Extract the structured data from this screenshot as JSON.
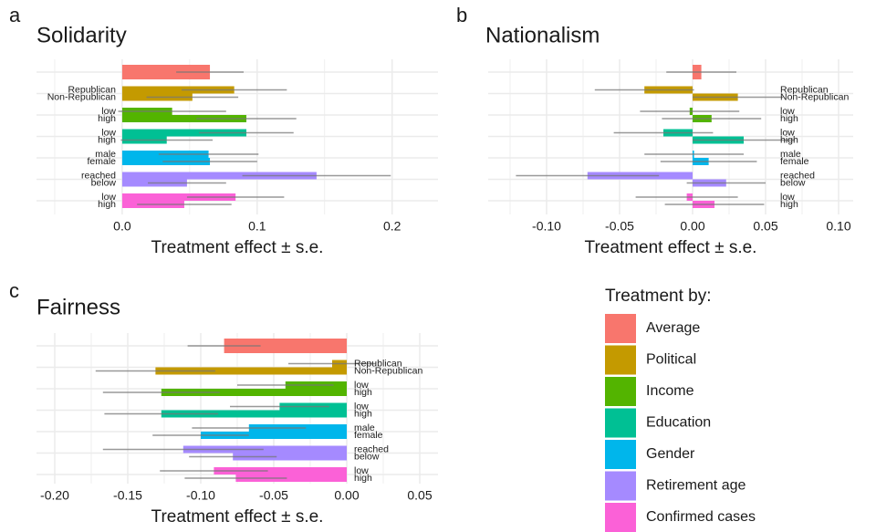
{
  "chart_data": [
    {
      "type": "bar",
      "letter": "a",
      "title": "Solidarity",
      "xlabel": "Treatment effect ± s.e.",
      "grid": true,
      "xlim": [
        -0.0635,
        0.234
      ],
      "xticks": [
        {
          "value": 0,
          "label": "0.0"
        },
        0.1,
        0.2
      ],
      "minor_xticks": [
        -0.05,
        0.05,
        0.15
      ],
      "groups": [
        {
          "labels": [
            null
          ],
          "values": [
            0.065
          ],
          "errors": [
            0.025
          ]
        },
        {
          "labels": [
            "Republican",
            "Non-Republican"
          ],
          "values": [
            0.083,
            0.052
          ],
          "errors": [
            0.039,
            0.034
          ]
        },
        {
          "labels": [
            "low",
            "high"
          ],
          "values": [
            0.037,
            0.092
          ],
          "errors": [
            0.04,
            0.037
          ]
        },
        {
          "labels": [
            "low",
            "high"
          ],
          "values": [
            0.092,
            0.033
          ],
          "errors": [
            0.035,
            0.034
          ]
        },
        {
          "labels": [
            "male",
            "female"
          ],
          "values": [
            0.064,
            0.065
          ],
          "errors": [
            0.037,
            0.035
          ]
        },
        {
          "labels": [
            "reached",
            "below"
          ],
          "values": [
            0.144,
            0.048
          ],
          "errors": [
            0.055,
            0.029
          ]
        },
        {
          "labels": [
            "low",
            "high"
          ],
          "values": [
            0.084,
            0.046
          ],
          "errors": [
            0.036,
            0.035
          ]
        }
      ]
    },
    {
      "type": "bar",
      "letter": "b",
      "title": "Nationalism",
      "xlabel": "Treatment effect ± s.e.",
      "grid": true,
      "xlim": [
        -0.14,
        0.11
      ],
      "xticks": [
        {
          "value": -0.1,
          "label": "-0.10"
        },
        {
          "value": -0.05,
          "label": "-0.05"
        },
        {
          "value": 0,
          "label": "0.00"
        },
        0.05,
        {
          "value": 0.1,
          "label": "0.10"
        }
      ],
      "minor_xticks": [
        -0.125,
        -0.075,
        -0.025,
        0.025,
        0.075
      ],
      "groups": [
        {
          "labels": [
            null
          ],
          "values": [
            0.006
          ],
          "errors": [
            0.024
          ]
        },
        {
          "labels": [
            "Republican",
            "Non-Republican"
          ],
          "values": [
            -0.033,
            0.031
          ],
          "errors": [
            0.034,
            0.031
          ]
        },
        {
          "labels": [
            "low",
            "high"
          ],
          "values": [
            -0.002,
            0.013
          ],
          "errors": [
            0.034,
            0.034
          ]
        },
        {
          "labels": [
            "low",
            "high"
          ],
          "values": [
            -0.02,
            0.035
          ],
          "errors": [
            0.034,
            0.035
          ]
        },
        {
          "labels": [
            "male",
            "female"
          ],
          "values": [
            0.001,
            0.011
          ],
          "errors": [
            0.034,
            0.033
          ]
        },
        {
          "labels": [
            "reached",
            "below"
          ],
          "values": [
            -0.072,
            0.023
          ],
          "errors": [
            0.049,
            0.027
          ]
        },
        {
          "labels": [
            "low",
            "high"
          ],
          "values": [
            -0.004,
            0.015
          ],
          "errors": [
            0.035,
            0.034
          ]
        }
      ]
    },
    {
      "type": "bar",
      "letter": "c",
      "title": "Fairness",
      "xlabel": "Treatment effect ± s.e.",
      "grid": true,
      "xlim": [
        -0.2125,
        0.0625
      ],
      "xticks": [
        {
          "value": -0.2,
          "label": "-0.20"
        },
        {
          "value": -0.15,
          "label": "-0.15"
        },
        {
          "value": -0.1,
          "label": "-0.10"
        },
        {
          "value": -0.05,
          "label": "-0.05"
        },
        {
          "value": 0,
          "label": "0.00"
        },
        0.05
      ],
      "minor_xticks": [
        -0.175,
        -0.125,
        -0.075,
        -0.025,
        0.025
      ],
      "groups": [
        {
          "labels": [
            null
          ],
          "values": [
            -0.084
          ],
          "errors": [
            0.025
          ]
        },
        {
          "labels": [
            "Republican",
            "Non-Republican"
          ],
          "values": [
            -0.01,
            -0.131
          ],
          "errors": [
            0.03,
            0.041
          ]
        },
        {
          "labels": [
            "low",
            "high"
          ],
          "values": [
            -0.042,
            -0.127
          ],
          "errors": [
            0.033,
            0.04
          ]
        },
        {
          "labels": [
            "low",
            "high"
          ],
          "values": [
            -0.046,
            -0.127
          ],
          "errors": [
            0.034,
            0.039
          ]
        },
        {
          "labels": [
            "male",
            "female"
          ],
          "values": [
            -0.067,
            -0.1
          ],
          "errors": [
            0.039,
            0.033
          ]
        },
        {
          "labels": [
            "reached",
            "below"
          ],
          "values": [
            -0.112,
            -0.078
          ],
          "errors": [
            0.055,
            0.03
          ]
        },
        {
          "labels": [
            "low",
            "high"
          ],
          "values": [
            -0.091,
            -0.076
          ],
          "errors": [
            0.037,
            0.035
          ]
        }
      ]
    }
  ],
  "legend": {
    "title": "Treatment by:",
    "items": [
      {
        "name": "Average",
        "color": "#f8766d"
      },
      {
        "name": "Political",
        "color": "#c49a00"
      },
      {
        "name": "Income",
        "color": "#53b400"
      },
      {
        "name": "Education",
        "color": "#00c094"
      },
      {
        "name": "Gender",
        "color": "#00b6eb"
      },
      {
        "name": "Retirement age",
        "color": "#a58aff"
      },
      {
        "name": "Confirmed cases",
        "color": "#fb61d7"
      }
    ]
  }
}
